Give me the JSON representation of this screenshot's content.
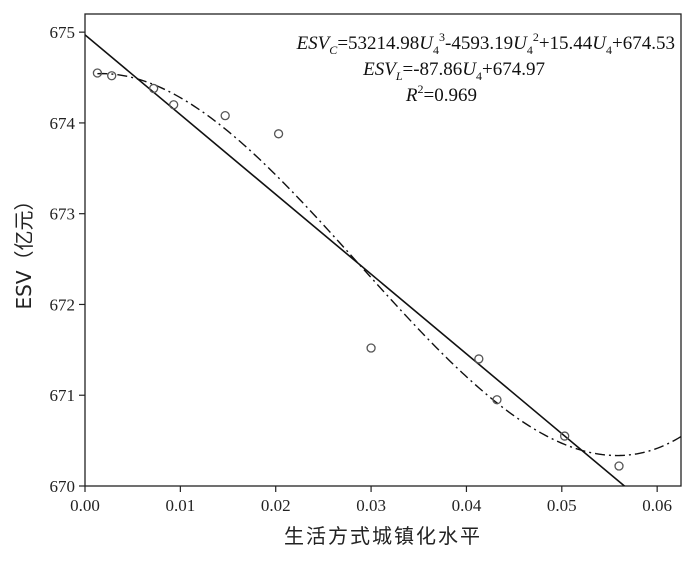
{
  "chart_data": {
    "type": "scatter",
    "title": "",
    "xlabel": "生活方式城镇化水平",
    "ylabel": "ESV（亿元）",
    "xlim": [
      0.0,
      0.0625
    ],
    "ylim": [
      670,
      675.2
    ],
    "x_ticks": [
      "0.00",
      "0.01",
      "0.02",
      "0.03",
      "0.04",
      "0.05",
      "0.06"
    ],
    "y_ticks": [
      "670",
      "671",
      "672",
      "673",
      "674",
      "675"
    ],
    "grid": false,
    "points": {
      "x": [
        0.0013,
        0.0028,
        0.0072,
        0.0093,
        0.0147,
        0.0203,
        0.03,
        0.0413,
        0.0432,
        0.0503,
        0.056
      ],
      "y": [
        674.55,
        674.52,
        674.38,
        674.2,
        674.08,
        673.88,
        671.52,
        671.4,
        670.95,
        670.55,
        670.22
      ]
    },
    "linear_fit": {
      "slope": -87.86,
      "intercept": 674.97
    },
    "cubic_fit": {
      "a3": 53214.98,
      "a2": -4593.19,
      "a1": 15.44,
      "a0": 674.53
    },
    "annotations": {
      "cubic_equation": {
        "prefix": "ESV",
        "prefix_sub": "C",
        "t1": "=53214.98",
        "var": "U",
        "var_sub": "4",
        "exp1": "3",
        "t2": "-4593.19",
        "exp2": "2",
        "t3": "+15.44",
        "t4": "+674.53"
      },
      "linear_equation": {
        "prefix": "ESV",
        "prefix_sub": "L",
        "t1": "=-87.86",
        "var": "U",
        "var_sub": "4",
        "t2": "+674.97"
      },
      "r_squared": {
        "symbol": "R",
        "exp": "2",
        "value": "=0.969"
      }
    },
    "colors": {
      "points": "#555555",
      "lines": "#111111"
    }
  }
}
